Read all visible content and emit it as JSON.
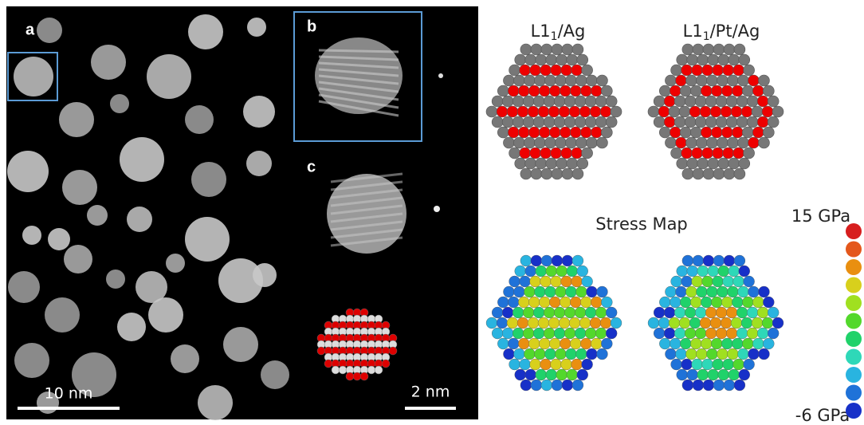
{
  "panels": {
    "a": "a",
    "b": "b",
    "c": "c"
  },
  "scale_bars": {
    "large": "10 nm",
    "small": "2 nm"
  },
  "models": [
    {
      "main": "L1",
      "sub": "1",
      "rest": "/Ag"
    },
    {
      "main": "L1",
      "sub": "1",
      "rest": "/Pt/Ag"
    }
  ],
  "stress_map": {
    "title": "Stress Map",
    "max_label": "15 GPa",
    "min_label": "-6 GPa"
  }
}
